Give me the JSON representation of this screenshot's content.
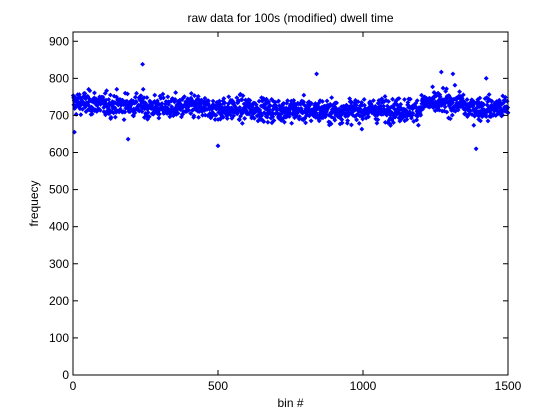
{
  "chart_data": {
    "type": "scatter",
    "title": "raw data for 100s (modified) dwell time",
    "xlabel": "bin #",
    "ylabel": "frequecy",
    "xlim": [
      0,
      1500
    ],
    "ylim": [
      0,
      925
    ],
    "xticks": [
      0,
      500,
      1000,
      1500
    ],
    "yticks": [
      0,
      100,
      200,
      300,
      400,
      500,
      600,
      700,
      800,
      900
    ],
    "grid": false,
    "legend": "none",
    "marker_color": "#0000ff",
    "series": [
      {
        "x_start": 1,
        "x_end": 1500,
        "x_step": 1,
        "y_mean_by_segment": [
          {
            "x": [
              0,
              100
            ],
            "mean": 733
          },
          {
            "x": [
              100,
              250
            ],
            "mean": 728
          },
          {
            "x": [
              250,
              450
            ],
            "mean": 722
          },
          {
            "x": [
              450,
              650
            ],
            "mean": 718
          },
          {
            "x": [
              650,
              800
            ],
            "mean": 715
          },
          {
            "x": [
              800,
              1000
            ],
            "mean": 712
          },
          {
            "x": [
              1000,
              1200
            ],
            "mean": 715
          },
          {
            "x": [
              1200,
              1350
            ],
            "mean": 733
          },
          {
            "x": [
              1350,
              1500
            ],
            "mean": 720
          }
        ],
        "y_spread": 28,
        "y_range_observed": [
          605,
          840
        ],
        "notable_points": [
          {
            "x": 240,
            "y": 838
          },
          {
            "x": 1270,
            "y": 817
          },
          {
            "x": 1310,
            "y": 812
          },
          {
            "x": 840,
            "y": 812
          },
          {
            "x": 1425,
            "y": 800
          },
          {
            "x": 500,
            "y": 618
          },
          {
            "x": 1390,
            "y": 610
          },
          {
            "x": 190,
            "y": 636
          },
          {
            "x": 5,
            "y": 655
          }
        ]
      }
    ]
  }
}
